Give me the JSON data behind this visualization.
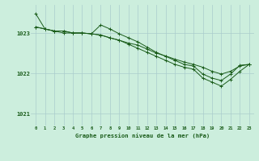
{
  "title": "Graphe pression niveau de la mer (hPa)",
  "background_color": "#cceedd",
  "grid_color": "#aacccc",
  "line_color": "#1a5c1a",
  "marker_color": "#1a5c1a",
  "xlim": [
    -0.5,
    23.5
  ],
  "ylim": [
    1020.7,
    1023.7
  ],
  "yticks": [
    1021,
    1022,
    1023
  ],
  "xticks": [
    0,
    1,
    2,
    3,
    4,
    5,
    6,
    7,
    8,
    9,
    10,
    11,
    12,
    13,
    14,
    15,
    16,
    17,
    18,
    19,
    20,
    21,
    22,
    23
  ],
  "series": [
    [
      1023.15,
      1023.1,
      1023.05,
      1023.05,
      1023.0,
      1023.0,
      1022.98,
      1022.95,
      1022.88,
      1022.82,
      1022.75,
      1022.7,
      1022.6,
      1022.5,
      1022.43,
      1022.35,
      1022.28,
      1022.22,
      1022.15,
      1022.05,
      1021.98,
      1022.05,
      1022.18,
      1022.22
    ],
    [
      1023.15,
      1023.1,
      1023.05,
      1023.05,
      1023.0,
      1023.0,
      1022.98,
      1023.2,
      1023.1,
      1022.98,
      1022.88,
      1022.78,
      1022.65,
      1022.52,
      1022.42,
      1022.32,
      1022.22,
      1022.18,
      1021.98,
      1021.88,
      1021.82,
      1021.98,
      1022.2,
      1022.22
    ],
    [
      1023.48,
      1023.1,
      1023.05,
      1023.0,
      1023.0,
      1023.0,
      1022.98,
      1022.95,
      1022.88,
      1022.82,
      1022.72,
      1022.62,
      1022.52,
      1022.42,
      1022.32,
      1022.22,
      1022.15,
      1022.1,
      1021.88,
      1021.78,
      1021.68,
      1021.85,
      1022.05,
      1022.22
    ]
  ]
}
